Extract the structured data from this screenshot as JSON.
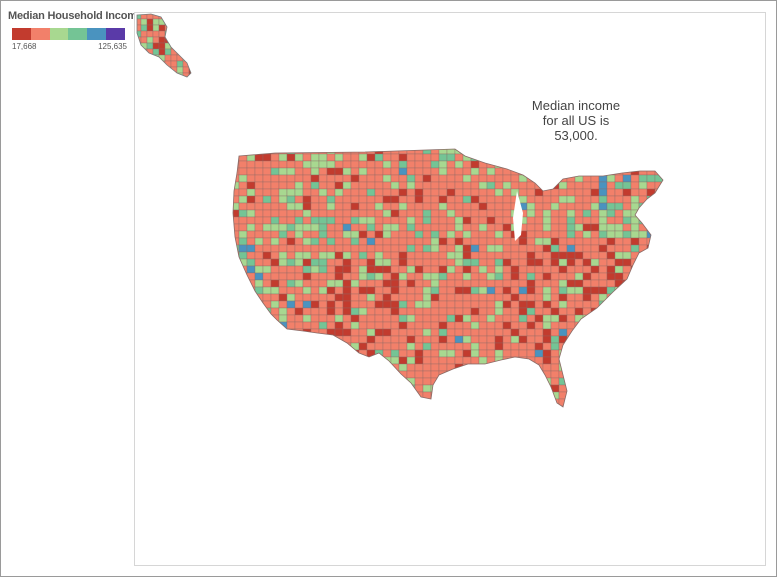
{
  "legend": {
    "title": "Median Household Income",
    "min_label": "17,668",
    "max_label": "125,635",
    "min_value": 17668,
    "max_value": 125635,
    "colors": [
      "#c23b2e",
      "#f2806a",
      "#a8d890",
      "#74c495",
      "#4a93bf",
      "#5a3aa8"
    ]
  },
  "annotation": {
    "line1": "Median income",
    "line2": "for all US is",
    "line3": "53,000."
  },
  "map": {
    "region": "United States counties",
    "border_color": "#7a5a55"
  }
}
